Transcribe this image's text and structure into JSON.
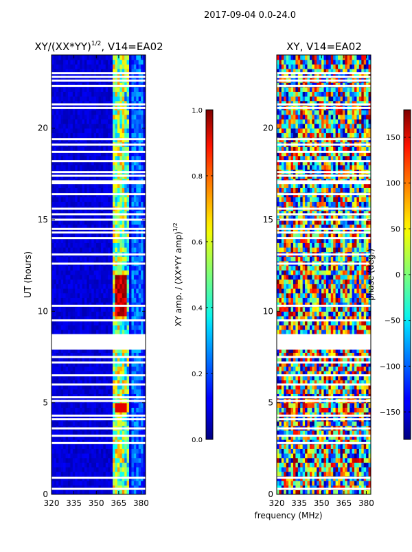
{
  "figure": {
    "suptitle": "2017-09-04 0.0-24.0",
    "shared_xlabel": "frequency (MHz)"
  },
  "chart_data": [
    {
      "type": "heatmap",
      "title_main": "XY/(XX*YY)",
      "title_sup": "1/2",
      "title_suffix": ", V14=EA02",
      "xlabel": "",
      "ylabel": "UT (hours)",
      "xlim": [
        320,
        383
      ],
      "ylim": [
        0,
        24
      ],
      "xticks": [
        320,
        335,
        350,
        365,
        380
      ],
      "yticks": [
        0,
        5,
        10,
        15,
        20
      ],
      "value_range": [
        0.0,
        1.0
      ],
      "colorbar": {
        "label_main": "XY amp. / (XX*YY amp)",
        "label_sup": "1/2",
        "min": 0.0,
        "max": 1.0,
        "ticks": [
          "0.0",
          "0.2",
          "0.4",
          "0.6",
          "0.8",
          "1.0"
        ]
      },
      "colormap": "jet",
      "description": "normalized cross-correlation amplitude vs frequency and UT",
      "gaps_hours": [
        0.3,
        0.9,
        2.8,
        3.2,
        3.6,
        4.1,
        4.3,
        5.1,
        5.3,
        6.0,
        6.5,
        7.2,
        7.5,
        8.0,
        8.1,
        8.2,
        8.3,
        8.4,
        8.5,
        9.5,
        10.3,
        12.6,
        13.1,
        14.0,
        14.3,
        14.5,
        15.0,
        15.3,
        15.6,
        16.4,
        17.0,
        17.1,
        17.4,
        17.6,
        18.2,
        18.7,
        19.1,
        19.4,
        21.1,
        21.3,
        22.3,
        22.6,
        22.8,
        23.0
      ]
    },
    {
      "type": "heatmap",
      "title_main": "XY, V14=EA02",
      "xlabel": "",
      "ylabel": "",
      "xlim": [
        320,
        383
      ],
      "ylim": [
        0,
        24
      ],
      "xticks": [
        320,
        335,
        350,
        365,
        380
      ],
      "yticks": [
        0,
        5,
        10,
        15,
        20
      ],
      "value_range": [
        -180,
        180
      ],
      "colorbar": {
        "label_main": "phase (deg.)",
        "min": -180,
        "max": 180,
        "ticks": [
          "−150",
          "−100",
          "−50",
          "0",
          "50",
          "100",
          "150"
        ],
        "tick_values": [
          -150,
          -100,
          -50,
          0,
          50,
          100,
          150
        ]
      },
      "colormap": "jet",
      "description": "cross-correlation phase vs frequency and UT",
      "gaps_hours": [
        0.3,
        0.9,
        2.8,
        3.2,
        3.6,
        4.1,
        4.3,
        5.1,
        5.3,
        6.0,
        6.5,
        7.2,
        7.5,
        8.0,
        8.1,
        8.2,
        8.3,
        8.4,
        8.5,
        9.5,
        10.3,
        12.6,
        13.1,
        14.0,
        14.3,
        14.5,
        15.0,
        15.3,
        15.6,
        16.4,
        17.0,
        17.1,
        17.4,
        17.6,
        18.2,
        18.7,
        19.1,
        19.4,
        21.1,
        21.3,
        22.3,
        22.6,
        22.8,
        23.0
      ]
    }
  ]
}
